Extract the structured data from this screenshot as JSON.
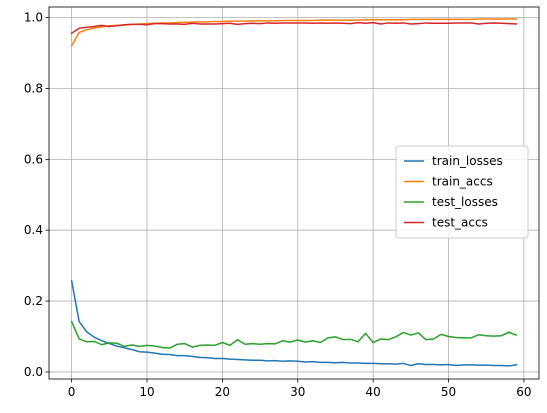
{
  "chart_data": {
    "type": "line",
    "title": "",
    "xlabel": "",
    "ylabel": "",
    "xlim": [
      -3,
      62
    ],
    "ylim": [
      -0.02,
      1.03
    ],
    "grid": true,
    "legend_position": "center-right",
    "xticks": [
      0,
      10,
      20,
      30,
      40,
      50,
      60
    ],
    "yticks": [
      0.0,
      0.2,
      0.4,
      0.6,
      0.8,
      1.0
    ],
    "xtick_labels": [
      "0",
      "10",
      "20",
      "30",
      "40",
      "50",
      "60"
    ],
    "ytick_labels": [
      "0.0",
      "0.2",
      "0.4",
      "0.6",
      "0.8",
      "1.0"
    ],
    "x": [
      0,
      1,
      2,
      3,
      4,
      5,
      6,
      7,
      8,
      9,
      10,
      11,
      12,
      13,
      14,
      15,
      16,
      17,
      18,
      19,
      20,
      21,
      22,
      23,
      24,
      25,
      26,
      27,
      28,
      29,
      30,
      31,
      32,
      33,
      34,
      35,
      36,
      37,
      38,
      39,
      40,
      41,
      42,
      43,
      44,
      45,
      46,
      47,
      48,
      49,
      50,
      51,
      52,
      53,
      54,
      55,
      56,
      57,
      58,
      59
    ],
    "series": [
      {
        "name": "train_losses",
        "color": "#1f77b4",
        "values": [
          0.257,
          0.142,
          0.113,
          0.098,
          0.088,
          0.08,
          0.073,
          0.068,
          0.063,
          0.057,
          0.056,
          0.053,
          0.05,
          0.049,
          0.046,
          0.046,
          0.044,
          0.041,
          0.04,
          0.038,
          0.038,
          0.036,
          0.035,
          0.034,
          0.033,
          0.033,
          0.031,
          0.032,
          0.03,
          0.031,
          0.03,
          0.028,
          0.029,
          0.027,
          0.027,
          0.026,
          0.027,
          0.025,
          0.025,
          0.024,
          0.024,
          0.023,
          0.023,
          0.022,
          0.024,
          0.018,
          0.023,
          0.021,
          0.021,
          0.02,
          0.021,
          0.018,
          0.02,
          0.02,
          0.019,
          0.019,
          0.018,
          0.018,
          0.017,
          0.02
        ]
      },
      {
        "name": "train_accs",
        "color": "#ff7f0e",
        "values": [
          0.921,
          0.958,
          0.966,
          0.971,
          0.974,
          0.977,
          0.978,
          0.979,
          0.981,
          0.982,
          0.983,
          0.984,
          0.985,
          0.985,
          0.986,
          0.987,
          0.987,
          0.988,
          0.988,
          0.989,
          0.989,
          0.99,
          0.99,
          0.99,
          0.991,
          0.991,
          0.991,
          0.991,
          0.992,
          0.992,
          0.992,
          0.992,
          0.992,
          0.993,
          0.993,
          0.993,
          0.993,
          0.993,
          0.993,
          0.994,
          0.994,
          0.994,
          0.994,
          0.994,
          0.994,
          0.995,
          0.995,
          0.995,
          0.995,
          0.995,
          0.995,
          0.995,
          0.995,
          0.995,
          0.996,
          0.996,
          0.996,
          0.996,
          0.996,
          0.996
        ]
      },
      {
        "name": "test_losses",
        "color": "#2ca02c",
        "values": [
          0.142,
          0.093,
          0.085,
          0.086,
          0.077,
          0.082,
          0.081,
          0.072,
          0.076,
          0.072,
          0.075,
          0.073,
          0.069,
          0.067,
          0.078,
          0.08,
          0.07,
          0.075,
          0.076,
          0.075,
          0.083,
          0.075,
          0.091,
          0.078,
          0.08,
          0.078,
          0.08,
          0.079,
          0.088,
          0.084,
          0.09,
          0.084,
          0.088,
          0.083,
          0.096,
          0.099,
          0.091,
          0.092,
          0.085,
          0.109,
          0.083,
          0.093,
          0.091,
          0.099,
          0.111,
          0.104,
          0.11,
          0.091,
          0.093,
          0.106,
          0.1,
          0.097,
          0.096,
          0.096,
          0.105,
          0.102,
          0.101,
          0.102,
          0.112,
          0.104
        ]
      },
      {
        "name": "test_accs",
        "color": "#d62728",
        "values": [
          0.956,
          0.97,
          0.973,
          0.975,
          0.978,
          0.975,
          0.977,
          0.98,
          0.981,
          0.981,
          0.98,
          0.983,
          0.983,
          0.982,
          0.982,
          0.981,
          0.984,
          0.982,
          0.982,
          0.982,
          0.983,
          0.984,
          0.981,
          0.983,
          0.984,
          0.983,
          0.985,
          0.984,
          0.985,
          0.985,
          0.985,
          0.985,
          0.984,
          0.985,
          0.984,
          0.985,
          0.984,
          0.983,
          0.986,
          0.984,
          0.986,
          0.982,
          0.985,
          0.984,
          0.985,
          0.982,
          0.983,
          0.985,
          0.984,
          0.984,
          0.984,
          0.985,
          0.985,
          0.985,
          0.982,
          0.984,
          0.985,
          0.984,
          0.983,
          0.982
        ]
      }
    ]
  }
}
